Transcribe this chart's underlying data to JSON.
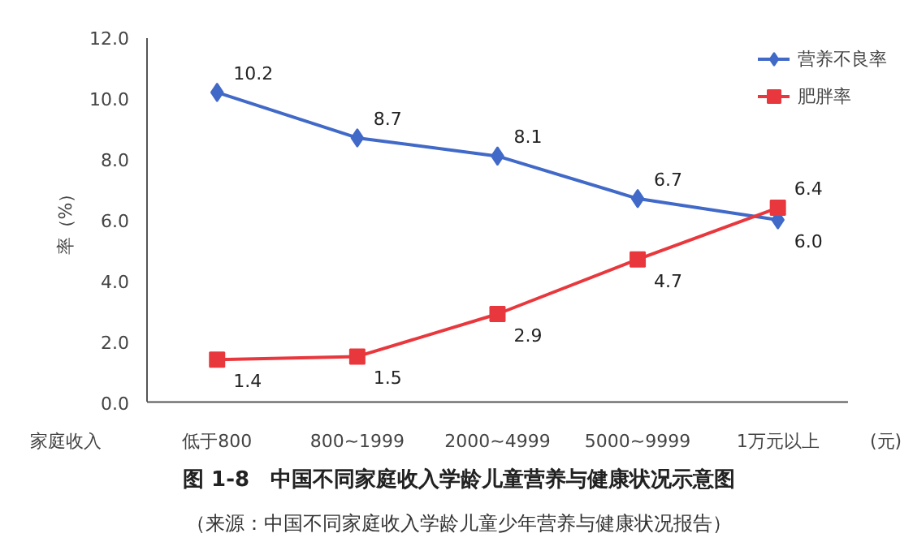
{
  "chart_data": {
    "type": "line",
    "title": "图 1-8　中国不同家庭收入学龄儿童营养与健康状况示意图",
    "subtitle": "（来源：中国不同家庭收入学龄儿童少年营养与健康状况报告）",
    "xlabel": "家庭收入",
    "ylabel": "率（%）",
    "annotations": [
      "(元)"
    ],
    "categories": [
      "低于800",
      "800~1999",
      "2000~4999",
      "5000~9999",
      "1万元以上"
    ],
    "series": [
      {
        "name": "营养不良率",
        "color": "#4169c8",
        "marker": "diamond",
        "values": [
          10.2,
          8.7,
          8.1,
          6.7,
          6.0
        ],
        "value_labels": [
          "10.2",
          "8.7",
          "8.1",
          "6.7",
          "6.0"
        ]
      },
      {
        "name": "肥胖率",
        "color": "#e8383d",
        "marker": "square",
        "values": [
          1.4,
          1.5,
          2.9,
          4.7,
          6.4
        ],
        "value_labels": [
          "1.4",
          "1.5",
          "2.9",
          "4.7",
          "6.4"
        ]
      }
    ],
    "ylim": [
      0,
      12
    ],
    "yticks": [
      {
        "value": 0,
        "label": "0.0"
      },
      {
        "value": 2,
        "label": "2.0"
      },
      {
        "value": 4,
        "label": "4.0"
      },
      {
        "value": 6,
        "label": "6.0"
      },
      {
        "value": 8,
        "label": "8.0"
      },
      {
        "value": 10,
        "label": "10.0"
      },
      {
        "value": 12,
        "label": "12.0"
      }
    ],
    "data_labels": true,
    "legend": "top right",
    "grid": false,
    "line_style": "solid"
  }
}
